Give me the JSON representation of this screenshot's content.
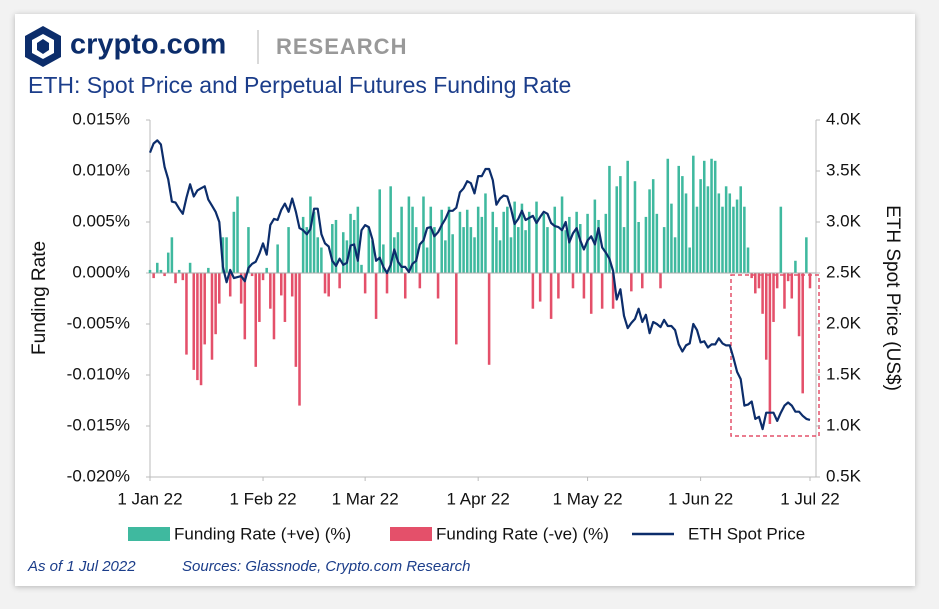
{
  "header": {
    "logo": "crypto.com",
    "section": "RESEARCH"
  },
  "chart_data": {
    "type": "bar",
    "title": "ETH: Spot Price and Perpetual Futures Funding Rate",
    "ylabel": "Funding Rate",
    "y2label": "ETH Spot Price (US$)",
    "xlim": [
      0,
      181
    ],
    "xticks": [
      {
        "value": 0,
        "label": "1 Jan 22"
      },
      {
        "value": 31,
        "label": "1 Feb 22"
      },
      {
        "value": 59,
        "label": "1 Mar 22"
      },
      {
        "value": 90,
        "label": "1 Apr 22"
      },
      {
        "value": 120,
        "label": "1 May 22"
      },
      {
        "value": 151,
        "label": "1 Jun 22"
      },
      {
        "value": 181,
        "label": "1 Jul 22"
      }
    ],
    "ylim": [
      -0.02,
      0.015
    ],
    "yticks": [
      {
        "value": -0.02,
        "label": "-0.020%"
      },
      {
        "value": -0.015,
        "label": "-0.015%"
      },
      {
        "value": -0.01,
        "label": "-0.010%"
      },
      {
        "value": -0.005,
        "label": "-0.005%"
      },
      {
        "value": 0,
        "label": "0.000%"
      },
      {
        "value": 0.005,
        "label": "0.005%"
      },
      {
        "value": 0.01,
        "label": "0.010%"
      },
      {
        "value": 0.015,
        "label": "0.015%"
      }
    ],
    "y2lim": [
      500,
      4000
    ],
    "y2ticks": [
      {
        "value": 500,
        "label": "0.5K"
      },
      {
        "value": 1000,
        "label": "1.0K"
      },
      {
        "value": 1500,
        "label": "1.5K"
      },
      {
        "value": 2000,
        "label": "2.0K"
      },
      {
        "value": 2500,
        "label": "2.5K"
      },
      {
        "value": 3000,
        "label": "3.0K"
      },
      {
        "value": 3500,
        "label": "3.5K"
      },
      {
        "value": 4000,
        "label": "4.0K"
      }
    ],
    "series": [
      {
        "name": "Funding Rate (+ve) (%)",
        "color": "#3fb99f",
        "values": [
          0.0003,
          null,
          0.001,
          0.0003,
          null,
          0.002,
          0.0035,
          null,
          0.0003,
          null,
          null,
          0.001,
          null,
          null,
          null,
          null,
          0.0005,
          null,
          null,
          null,
          0.0035,
          0.0035,
          null,
          0.006,
          0.0075,
          null,
          null,
          0.0045,
          null,
          null,
          null,
          null,
          0.0005,
          null,
          null,
          0.0028,
          null,
          null,
          0.0045,
          null,
          null,
          null,
          0.0055,
          0.0045,
          0.0075,
          0.006,
          0.0035,
          0.0025,
          null,
          null,
          0.0048,
          0.0052,
          null,
          0.004,
          0.0032,
          0.0058,
          0.0052,
          0.0065,
          0.0008,
          null,
          0.0045,
          0.0032,
          null,
          0.0082,
          0.0028,
          null,
          0.0085,
          0.0035,
          0.004,
          0.0065,
          null,
          0.0075,
          0.0065,
          0.0045,
          null,
          0.0075,
          0.0025,
          0.0065,
          0.0045,
          null,
          0.0062,
          0.0032,
          0.0065,
          0.0038,
          null,
          0.006,
          0.0045,
          0.0062,
          0.0045,
          0.0035,
          0.0065,
          0.0055,
          0.0078,
          null,
          0.006,
          0.0045,
          0.0032,
          0.006,
          0.0065,
          0.0035,
          0.007,
          0.0045,
          0.0068,
          0.0042,
          0.006,
          null,
          0.007,
          null,
          0.0058,
          0.0045,
          null,
          0.0065,
          null,
          0.0075,
          0.0042,
          0.0055,
          null,
          0.006,
          0.0048,
          null,
          0.0058,
          null,
          0.0072,
          0.0052,
          null,
          0.0058,
          0.0105,
          null,
          0.0085,
          0.0095,
          0.0045,
          0.011,
          null,
          0.009,
          0.005,
          null,
          0.0055,
          0.0082,
          0.0092,
          0.0058,
          null,
          0.0045,
          0.0112,
          0.0068,
          0.0035,
          0.0105,
          0.0095,
          0.0078,
          0.0025,
          0.0115,
          0.0065,
          0.0092,
          0.011,
          0.0085,
          0.0112,
          0.011,
          0.0078,
          0.0065,
          0.0085,
          0.0078,
          0.0065,
          0.0072,
          0.0085,
          0.0065,
          0.0025,
          null,
          null,
          null,
          null,
          null,
          null,
          null,
          null,
          0.0065,
          null,
          null,
          null,
          0.0012,
          null,
          null,
          0.0035,
          null
        ]
      },
      {
        "name": "Funding Rate (-ve) (%)",
        "color": "#e4506a",
        "values": [
          null,
          -0.0005,
          null,
          null,
          -0.0003,
          null,
          null,
          -0.001,
          null,
          -0.0007,
          -0.008,
          null,
          -0.0095,
          -0.0105,
          -0.011,
          -0.007,
          null,
          -0.0085,
          -0.006,
          -0.003,
          null,
          null,
          -0.0023,
          null,
          null,
          -0.003,
          -0.0065,
          null,
          -0.0003,
          -0.0092,
          -0.0048,
          -0.0007,
          null,
          -0.0035,
          -0.0065,
          null,
          -0.0022,
          -0.0048,
          null,
          -0.0023,
          -0.0092,
          -0.013,
          null,
          null,
          null,
          null,
          null,
          null,
          -0.002,
          -0.0023,
          null,
          null,
          -0.0015,
          null,
          null,
          null,
          null,
          null,
          null,
          -0.002,
          null,
          null,
          -0.0045,
          null,
          null,
          -0.002,
          null,
          null,
          null,
          null,
          -0.0025,
          null,
          null,
          null,
          -0.0015,
          null,
          null,
          null,
          null,
          -0.0025,
          null,
          null,
          null,
          null,
          -0.007,
          null,
          null,
          null,
          null,
          null,
          null,
          null,
          null,
          -0.009,
          null,
          null,
          null,
          null,
          null,
          null,
          null,
          null,
          null,
          null,
          null,
          -0.0035,
          null,
          -0.0028,
          null,
          null,
          -0.0045,
          null,
          -0.0025,
          null,
          null,
          null,
          -0.0015,
          null,
          null,
          -0.0025,
          null,
          -0.004,
          null,
          null,
          -0.0035,
          null,
          null,
          -0.0035,
          null,
          null,
          null,
          null,
          -0.0018,
          null,
          null,
          -0.0015,
          null,
          null,
          null,
          null,
          -0.0015,
          null,
          null,
          null,
          null,
          null,
          null,
          null,
          null,
          null,
          null,
          null,
          null,
          null,
          null,
          null,
          null,
          null,
          null,
          null,
          null,
          null,
          null,
          null,
          null,
          -0.0005,
          -0.002,
          -0.0015,
          -0.004,
          -0.0085,
          -0.0148,
          -0.0048,
          -0.0015,
          null,
          -0.0035,
          -0.0008,
          -0.0025,
          null,
          -0.0062,
          -0.0118,
          null,
          -0.0015
        ]
      },
      {
        "name": "ETH Spot Price",
        "color": "#0c2d6b",
        "axis": "y2",
        "values": [
          3680,
          3770,
          3800,
          3760,
          3540,
          3420,
          3200,
          3190,
          3130,
          3080,
          3240,
          3370,
          3250,
          3310,
          3330,
          3350,
          3220,
          3160,
          3100,
          3000,
          2560,
          2410,
          2530,
          2450,
          2460,
          2470,
          2420,
          2550,
          2590,
          2610,
          2690,
          2790,
          2680,
          2970,
          3030,
          3020,
          3120,
          3180,
          3100,
          3230,
          3100,
          2940,
          2920,
          2880,
          2930,
          3130,
          3130,
          2880,
          2790,
          2760,
          2620,
          2570,
          2640,
          2580,
          2600,
          2770,
          2780,
          2620,
          2920,
          2970,
          2950,
          2830,
          2620,
          2650,
          2560,
          2500,
          2580,
          2730,
          2610,
          2560,
          2560,
          2510,
          2590,
          2620,
          2780,
          2820,
          2940,
          2950,
          2860,
          2900,
          2970,
          3030,
          3110,
          3110,
          3140,
          3290,
          3330,
          3400,
          3380,
          3280,
          3450,
          3450,
          3520,
          3520,
          3410,
          3170,
          3230,
          3260,
          3250,
          3130,
          2980,
          3030,
          3110,
          3020,
          3040,
          3060,
          2990,
          3050,
          3100,
          3080,
          2990,
          2960,
          2950,
          2920,
          3000,
          2800,
          2890,
          2940,
          2820,
          2730,
          2820,
          2860,
          2780,
          2940,
          2750,
          2700,
          2640,
          2520,
          2240,
          2340,
          2080,
          1960,
          2010,
          2050,
          2150,
          2020,
          2090,
          1910,
          2020,
          2000,
          1970,
          2040,
          1980,
          1980,
          1940,
          1800,
          1730,
          1790,
          1810,
          2000,
          1940,
          1820,
          1830,
          1770,
          1800,
          1800,
          1860,
          1810,
          1790,
          1790,
          1670,
          1530,
          1460,
          1200,
          1210,
          1240,
          1070,
          1090,
          970,
          1130,
          1130,
          1130,
          1050,
          1130,
          1200,
          1230,
          1200,
          1140,
          1140,
          1100,
          1070,
          1060
        ]
      }
    ]
  },
  "footer": {
    "date_note": "As of 1 Jul 2022",
    "sources": "Sources: Glassnode, Crypto.com Research"
  }
}
